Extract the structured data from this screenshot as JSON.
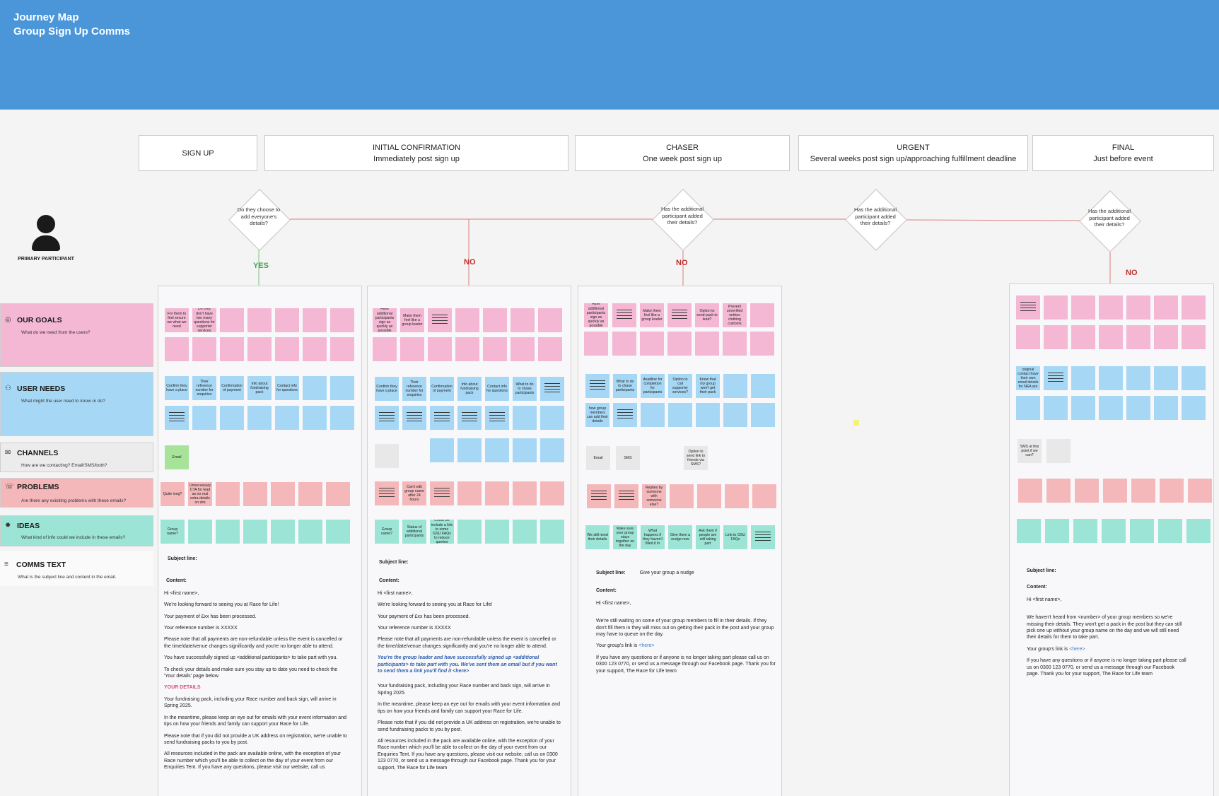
{
  "header": {
    "title": "Journey Map",
    "subtitle": "Group Sign Up Comms"
  },
  "phases": [
    {
      "title": "SIGN UP",
      "sub": ""
    },
    {
      "title": "INITIAL CONFIRMATION",
      "sub": "Immediately post sign up"
    },
    {
      "title": "CHASER",
      "sub": "One week post sign up"
    },
    {
      "title": "URGENT",
      "sub": "Several weeks post sign up/approaching fulfillment deadline"
    },
    {
      "title": "FINAL",
      "sub": "Just before event"
    }
  ],
  "decisions": [
    "Do they choose to add everyone's details?",
    "Has the additional participant added their details?",
    "Has the additional participant added their details?",
    "Has the additional participant added their details?"
  ],
  "branches": {
    "yes": "YES",
    "no": "NO"
  },
  "persona": {
    "label": "PRIMARY PARTICIPANT",
    "icon": "person-icon"
  },
  "rows": [
    {
      "title": "OUR GOALS",
      "sub": "What do we need from the users?",
      "icon": "target-icon"
    },
    {
      "title": "USER NEEDS",
      "sub": "What might the user need to know or do?",
      "icon": "users-icon"
    },
    {
      "title": "CHANNELS",
      "sub": "How are we contacting? Email/SMS/both?",
      "icon": "mail-icon"
    },
    {
      "title": "PROBLEMS",
      "sub": "Are there any exisiting problems with these emails?",
      "icon": "chat-icon"
    },
    {
      "title": "IDEAS",
      "sub": "What kind of info could we include in these emails?",
      "icon": "bulb-icon"
    },
    {
      "title": "COMMS TEXT",
      "sub": "What is the subject line and content in the email.",
      "icon": "text-icon"
    }
  ],
  "notes": {
    "c1": {
      "goals": [
        "For them to feel secure we what we need",
        "Do they don't have two many questions for supporter services"
      ],
      "needs": [
        "Confirm they have a place",
        "Their reference number for enquiries",
        "Confirmation of payment",
        "Info about fundraising pack",
        "Contact info for questions"
      ],
      "channel": "Email",
      "problems": [
        "Quite long?",
        "Unnecessary CTA for lead as no real extra details on site"
      ],
      "ideas": [
        "Group name?"
      ]
    },
    "c2": {
      "goals": [
        "Have additional participants sign as quickly as possible",
        "Make them feel like a group leader"
      ],
      "needs": [
        "Confirm they have a place",
        "Their reference number for enquiries",
        "Confirmation of payment",
        "Info about fundraising pack",
        "Contact info for questions",
        "What to do to chase participants"
      ],
      "problems": [
        "Can't edit group name after 24 hours"
      ],
      "ideas": [
        "Group name?",
        "Status of additional participants",
        "Could we include a link to some GSU FAQs to reduce queries"
      ]
    },
    "c3": {
      "goals": [
        "Have additional participants sign as quickly as possible",
        "Make them feel like a group leader",
        "Option to send pack to lead?",
        "Prevent unverified entries clothing customs"
      ],
      "needs": [
        "What to do to chase participants",
        "deadline for completion for participants",
        "Option to call supporter services?",
        "Know that my group won't get their pack",
        "how group members can add their details"
      ],
      "channels": [
        "Email",
        "SMS",
        "Option to send link to friends via SMS?"
      ],
      "problems": [
        "Replies by someone with someone else?"
      ],
      "ideas": [
        "We still need their details",
        "Make sure your group stays together on the day",
        "What happens if they haven't filled it in",
        "Give them a nudge now",
        "Ask them if people are still taking part",
        "Link to GSU FAQs"
      ]
    },
    "c4": {
      "needs": [
        "Warn original contact have their own email details for NEA are name"
      ],
      "channels": [
        "SMS at this point if we can?"
      ]
    }
  },
  "comms": {
    "subject_label": "Subject line:",
    "content_label": "Content:",
    "c1": {
      "subject": "",
      "paras": [
        "Hi <first name>,",
        "We're looking forward to seeing you at Race for Life!",
        "Your payment of £xx has been processed.",
        "Your reference number is XXXXX",
        "Please note that all payments are non-refundable unless the event is cancelled or the time/date/venue changes significantly and you're no longer able to attend.",
        "You have successfully signed up <additional participants> to take part with you.",
        "To check your details and make sure you stay up to date you need to check the 'Your details' page below."
      ],
      "section": "YOUR DETAILS",
      "paras2": [
        "Your fundraising pack, including your Race number and back sign, will arrive in Spring 2025.",
        "In the meantime, please keep an eye out for emails with your event information and tips on how your friends and family can support your Race for Life.",
        "Please note that if you did not provide a UK address on registration, we're unable to send fundraising packs to you by post.",
        " All resources included in the pack are available online, with the exception of your Race number which you'll be able to collect on the day of your event from our Enquiries Tent.  If you have any questions, please visit our website, call us"
      ]
    },
    "c2": {
      "subject": "",
      "paras": [
        "Hi <first name>,",
        "We're looking forward to seeing you at Race for Life!",
        "Your payment of £xx has been processed.",
        "Your reference number is XXXXX",
        "Please note that all payments are non-refundable unless the event is cancelled or the time/date/venue changes significantly and you're no longer able to attend."
      ],
      "highlight": "You're the group leader and have successfully signed up <additional participants> to take part with you.  We've sent them an email but if you want to send them a link you'll find it <here>",
      "paras2": [
        "Your fundraising pack, including your Race number and back sign, will arrive in Spring 2025.",
        "In the meantime, please keep an eye out for emails with your event information and tips on how your friends and family can support your Race for Life.",
        "Please note that if you did not provide a UK address on registration, we're unable to send fundraising packs to you by post.",
        " All resources included in the pack are available online, with the exception of your Race number which you'll be able to collect on the day of your event from our Enquiries Tent.  If you have any questions, please visit our website, call us on 0300 123 0770, or send us a message through our Facebook page.  Thank you for your support, The Race for Life team"
      ]
    },
    "c3": {
      "subject": "Give your group a nudge",
      "greeting": "Hi <first name>,",
      "body": "We're still waiting on some of your group members to fill in their details.  If they don't fill them in they will miss out on getting their pack in the post and your group may have to queue on the day.",
      "link_prefix": "Your group's link is ",
      "link": "<here>",
      "closing": "If you have any questions or if anyone is no longer taking part please call us on 0300 123 0770, or send us a message through our Facebook page.  Thank you for your support, The Race for Life team"
    },
    "c4": {
      "subject": "",
      "greeting": "Hi <first name>,",
      "body": "We haven't heard from <number> of your group members so we're missing their details.  They won't get a pack in the post but they can still pick one up without your group name on the day and we will still need their details for them to take part.",
      "link_prefix": "Your group's link is ",
      "link": "<here>",
      "closing": "If you have any questions or if anyone is no longer taking part please call us on 0300 123 0770, or send us a message through our Facebook page.  Thank you for your support, The Race for Life team"
    }
  }
}
